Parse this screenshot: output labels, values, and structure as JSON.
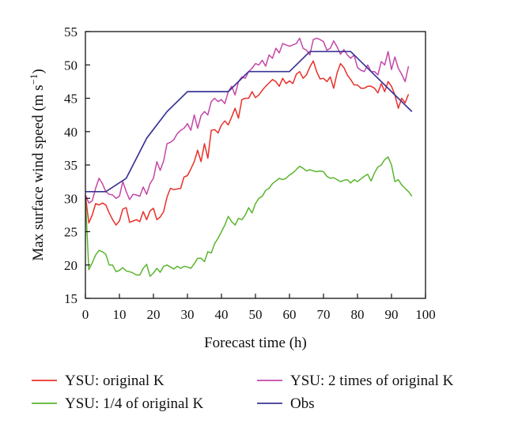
{
  "chart_data": {
    "type": "line",
    "xlabel": "Forecast time (h)",
    "ylabel_main": "Max surface wind speed (m s",
    "ylabel_sup": "−1",
    "ylabel_close": ")",
    "xlim": [
      0,
      100
    ],
    "ylim": [
      15,
      55
    ],
    "xticks": [
      0,
      10,
      20,
      30,
      40,
      50,
      60,
      70,
      80,
      90,
      100
    ],
    "yticks": [
      15,
      20,
      25,
      30,
      35,
      40,
      45,
      50,
      55
    ],
    "grid": false,
    "legend_position": "bottom",
    "series": [
      {
        "name": "YSU: original K",
        "color": "#e8302a",
        "x": [
          0,
          1,
          2,
          3,
          4,
          5,
          6,
          7,
          8,
          9,
          10,
          11,
          12,
          13,
          14,
          15,
          16,
          17,
          18,
          19,
          20,
          21,
          22,
          23,
          24,
          25,
          26,
          27,
          28,
          29,
          30,
          31,
          32,
          33,
          34,
          35,
          36,
          37,
          38,
          39,
          40,
          41,
          42,
          43,
          44,
          45,
          46,
          47,
          48,
          49,
          50,
          51,
          52,
          53,
          54,
          55,
          56,
          57,
          58,
          59,
          60,
          61,
          62,
          63,
          64,
          65,
          66,
          67,
          68,
          69,
          70,
          71,
          72,
          73,
          74,
          75,
          76,
          77,
          78,
          79,
          80,
          81,
          82,
          83,
          84,
          85,
          86,
          87,
          88,
          89,
          90,
          91,
          92,
          93,
          94,
          95,
          96
        ],
        "y": [
          30.5,
          26.3,
          27.5,
          29.2,
          29.0,
          29.3,
          29.0,
          27.8,
          26.8,
          26.0,
          26.6,
          28.4,
          28.6,
          26.4,
          26.6,
          26.8,
          26.5,
          28.0,
          26.8,
          28.1,
          28.5,
          26.8,
          27.2,
          28.0,
          30.2,
          31.5,
          31.3,
          31.4,
          31.5,
          33.2,
          33.4,
          34.4,
          35.5,
          37.2,
          35.5,
          38.2,
          36.0,
          40.2,
          40.3,
          39.8,
          41.0,
          41.6,
          41.0,
          42.2,
          43.5,
          42.0,
          44.8,
          45.0,
          45.0,
          46.0,
          45.1,
          45.5,
          46.2,
          46.8,
          47.3,
          47.8,
          47.5,
          46.8,
          48.0,
          47.2,
          47.6,
          47.2,
          48.6,
          49.0,
          48.0,
          48.5,
          49.7,
          50.6,
          49.0,
          47.9,
          48.0,
          47.5,
          48.2,
          46.5,
          48.8,
          50.2,
          49.6,
          48.5,
          47.8,
          47.0,
          47.0,
          46.5,
          46.5,
          46.8,
          46.8,
          46.5,
          45.8,
          47.2,
          46.0,
          47.5,
          46.8,
          45.5,
          43.5,
          45.0,
          44.3,
          45.6,
          null
        ]
      },
      {
        "name": "YSU: 2 times of original K",
        "color": "#c447a8",
        "x": [
          0,
          1,
          2,
          3,
          4,
          5,
          6,
          7,
          8,
          9,
          10,
          11,
          12,
          13,
          14,
          15,
          16,
          17,
          18,
          19,
          20,
          21,
          22,
          23,
          24,
          25,
          26,
          27,
          28,
          29,
          30,
          31,
          32,
          33,
          34,
          35,
          36,
          37,
          38,
          39,
          40,
          41,
          42,
          43,
          44,
          45,
          46,
          47,
          48,
          49,
          50,
          51,
          52,
          53,
          54,
          55,
          56,
          57,
          58,
          59,
          60,
          61,
          62,
          63,
          64,
          65,
          66,
          67,
          68,
          69,
          70,
          71,
          72,
          73,
          74,
          75,
          76,
          77,
          78,
          79,
          80,
          81,
          82,
          83,
          84,
          85,
          86,
          87,
          88,
          89,
          90,
          91,
          92,
          93,
          94,
          95,
          96
        ],
        "y": [
          30.5,
          29.3,
          29.6,
          31.5,
          33.0,
          32.2,
          31.0,
          30.6,
          30.5,
          30.0,
          30.3,
          32.5,
          31.0,
          29.8,
          30.6,
          30.5,
          30.3,
          31.7,
          30.6,
          32.2,
          33.0,
          35.5,
          34.2,
          35.6,
          38.2,
          38.4,
          38.8,
          39.7,
          40.2,
          40.5,
          41.2,
          40.2,
          42.5,
          40.5,
          42.4,
          43.0,
          42.5,
          44.5,
          45.0,
          44.5,
          44.8,
          44.2,
          46.0,
          46.8,
          45.5,
          47.5,
          48.2,
          48.0,
          49.0,
          49.5,
          50.2,
          50.0,
          50.7,
          49.8,
          51.5,
          51.0,
          52.5,
          51.8,
          53.2,
          53.0,
          52.8,
          53.0,
          53.2,
          54.0,
          52.5,
          52.2,
          51.5,
          53.8,
          54.0,
          53.8,
          53.5,
          52.2,
          52.5,
          53.6,
          52.7,
          51.6,
          52.3,
          51.5,
          51.0,
          51.5,
          49.6,
          49.2,
          49.0,
          50.0,
          49.0,
          49.0,
          48.5,
          50.5,
          50.0,
          52.0,
          49.3,
          51.2,
          49.5,
          48.6,
          47.5,
          49.8,
          null
        ]
      },
      {
        "name": "YSU: 1/4 of original K",
        "color": "#5ab52e",
        "x": [
          0,
          1,
          2,
          3,
          4,
          5,
          6,
          7,
          8,
          9,
          10,
          11,
          12,
          13,
          14,
          15,
          16,
          17,
          18,
          19,
          20,
          21,
          22,
          23,
          24,
          25,
          26,
          27,
          28,
          29,
          30,
          31,
          32,
          33,
          34,
          35,
          36,
          37,
          38,
          39,
          40,
          41,
          42,
          43,
          44,
          45,
          46,
          47,
          48,
          49,
          50,
          51,
          52,
          53,
          54,
          55,
          56,
          57,
          58,
          59,
          60,
          61,
          62,
          63,
          64,
          65,
          66,
          67,
          68,
          69,
          70,
          71,
          72,
          73,
          74,
          75,
          76,
          77,
          78,
          79,
          80,
          81,
          82,
          83,
          84,
          85,
          86,
          87,
          88,
          89,
          90,
          91,
          92,
          93,
          94,
          95,
          96
        ],
        "y": [
          30.0,
          19.3,
          20.3,
          21.5,
          22.2,
          22.0,
          21.6,
          20.0,
          20.0,
          19.0,
          19.2,
          19.6,
          19.1,
          19.0,
          18.8,
          18.5,
          18.5,
          19.5,
          20.1,
          18.3,
          18.8,
          19.5,
          18.9,
          19.8,
          20.0,
          19.7,
          19.4,
          19.8,
          19.5,
          19.8,
          19.7,
          19.5,
          20.2,
          21.0,
          21.0,
          20.5,
          22.0,
          21.8,
          23.2,
          24.0,
          25.0,
          26.0,
          27.3,
          26.5,
          26.0,
          27.0,
          26.8,
          27.5,
          28.6,
          27.8,
          29.2,
          30.0,
          30.3,
          31.2,
          31.5,
          32.2,
          32.6,
          33.0,
          32.8,
          33.0,
          33.5,
          33.8,
          34.3,
          34.8,
          34.5,
          34.1,
          34.3,
          34.1,
          34.0,
          34.1,
          34.0,
          33.3,
          33.0,
          33.1,
          32.8,
          32.5,
          32.7,
          32.8,
          32.3,
          32.8,
          32.5,
          32.9,
          33.3,
          33.6,
          32.6,
          33.8,
          34.7,
          35.0,
          35.8,
          36.2,
          35.0,
          32.5,
          32.8,
          32.0,
          31.5,
          31.0,
          30.3
        ]
      },
      {
        "name": "Obs",
        "color": "#3b3596",
        "x": [
          0,
          6,
          12,
          18,
          24,
          30,
          36,
          42,
          48,
          54,
          60,
          66,
          72,
          78,
          84,
          90,
          96
        ],
        "y": [
          31,
          31,
          33,
          39,
          43,
          46,
          46,
          46,
          49,
          49,
          49,
          52,
          52,
          52,
          49,
          46,
          43
        ]
      }
    ]
  }
}
